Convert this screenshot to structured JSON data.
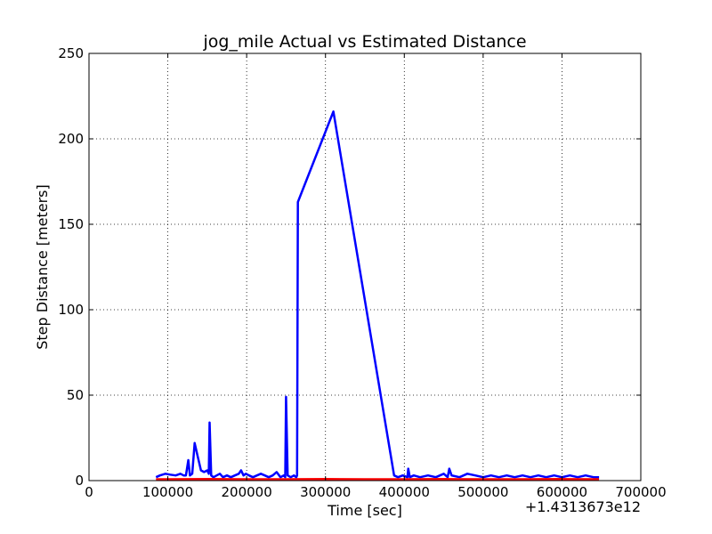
{
  "chart_data": {
    "type": "line",
    "title": "jog_mile Actual vs Estimated Distance",
    "xlabel": "Time [sec]",
    "ylabel": "Step Distance [meters]",
    "x_offset_label": "+1.4313673e12",
    "xlim": [
      0,
      700000
    ],
    "ylim": [
      0,
      250
    ],
    "xticks": [
      0,
      100000,
      200000,
      300000,
      400000,
      500000,
      600000,
      700000
    ],
    "xtick_labels": [
      "0",
      "100000",
      "200000",
      "300000",
      "400000",
      "500000",
      "600000",
      "700000"
    ],
    "yticks": [
      0,
      50,
      100,
      150,
      200,
      250
    ],
    "ytick_labels": [
      "0",
      "50",
      "100",
      "150",
      "200",
      "250"
    ],
    "grid": true,
    "legend": "none",
    "series": [
      {
        "color": "#0000ff",
        "x": [
          85000,
          90000,
          97000,
          103000,
          110000,
          116000,
          120000,
          123000,
          126000,
          128000,
          131000,
          134000,
          138000,
          142000,
          146000,
          150000,
          152000,
          153000,
          155000,
          158000,
          162000,
          166000,
          170000,
          175000,
          180000,
          185000,
          190000,
          193000,
          196000,
          199000,
          203000,
          208000,
          213000,
          218000,
          223000,
          228000,
          233000,
          238000,
          243000,
          247000,
          249000,
          250000,
          252000,
          256000,
          260000,
          263000,
          264000,
          265000,
          310000,
          387000,
          392000,
          398000,
          404000,
          405000,
          407000,
          412000,
          420000,
          430000,
          440000,
          450000,
          455000,
          457000,
          460000,
          470000,
          480000,
          490000,
          500000,
          510000,
          520000,
          530000,
          540000,
          550000,
          560000,
          570000,
          580000,
          590000,
          600000,
          610000,
          620000,
          630000,
          640000,
          647000
        ],
        "y": [
          2,
          3,
          4,
          3.5,
          3,
          4,
          3,
          3,
          12,
          3,
          4,
          22,
          14,
          6,
          5,
          6,
          4,
          34,
          3,
          2,
          3,
          4,
          2,
          3,
          2,
          3,
          4,
          6,
          3,
          4,
          3,
          2,
          3,
          4,
          3,
          2,
          3,
          5,
          2,
          3,
          2,
          49,
          3,
          2,
          3,
          2,
          3,
          163,
          216,
          3,
          2,
          3,
          2,
          7,
          2,
          3,
          2,
          3,
          2,
          4,
          2,
          7,
          3,
          2,
          4,
          3,
          2,
          3,
          2,
          3,
          2,
          3,
          2,
          3,
          2,
          3,
          2,
          3,
          2,
          3,
          2,
          2
        ]
      },
      {
        "color": "#ff0000",
        "x": [
          85000,
          100000,
          150000,
          200000,
          250000,
          300000,
          350000,
          400000,
          450000,
          500000,
          550000,
          600000,
          647000
        ],
        "y": [
          0.8,
          0.8,
          0.9,
          0.8,
          0.8,
          0.9,
          0.8,
          0.8,
          0.9,
          0.8,
          0.8,
          0.9,
          0.8
        ]
      }
    ]
  }
}
